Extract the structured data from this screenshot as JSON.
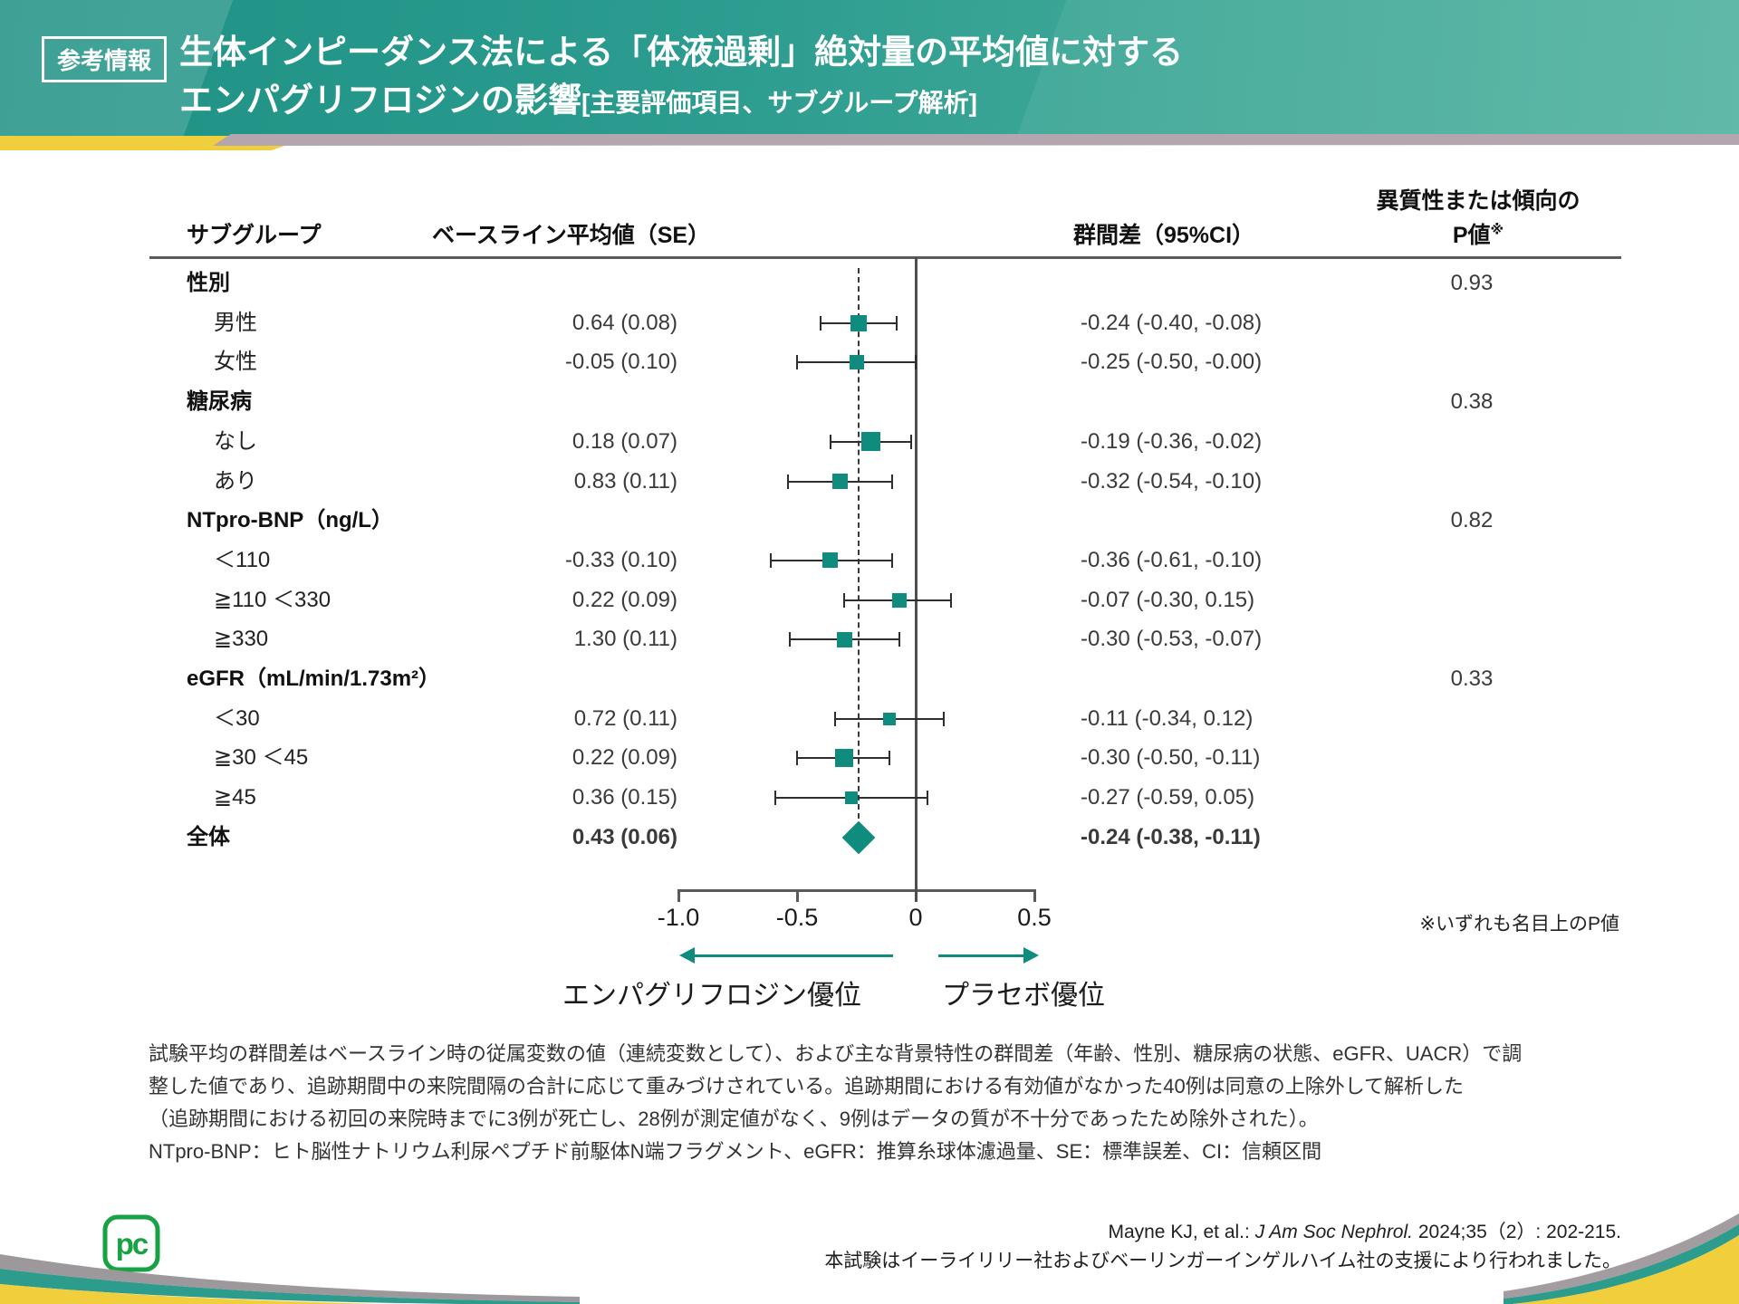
{
  "colors": {
    "header_teal_dark": "#1e9184",
    "header_teal_light": "#55b4a2",
    "marker_teal": "#0f8c7e",
    "stripe_mauve": "#b4a6af",
    "stripe_yellow": "#f1ce3b",
    "logo_green": "#17a244"
  },
  "header": {
    "tag": "参考情報",
    "title_line1": "生体インピーダンス法による「体液過剰」絶対量の平均値に対する",
    "title_line2_main": "エンパグリフロジンの影響",
    "title_line2_sub": "[主要評価項目、サブグループ解析]"
  },
  "table_headers": {
    "subgroup": "サブグループ",
    "baseline": "ベースライン平均値（SE）",
    "diff": "群間差（95%CI）",
    "p_line1": "異質性または傾向の",
    "p_line2": "P値",
    "p_sup": "※"
  },
  "chart_data": {
    "type": "forest",
    "title": "生体インピーダンス法による「体液過剰」絶対量の平均値に対するエンパグリフロジンの影響（主要評価項目、サブグループ解析）",
    "xlabel_left": "エンパグリフロジン優位",
    "xlabel_right": "プラセボ優位",
    "xlim": [
      -1.0,
      0.5
    ],
    "x_ticks": [
      {
        "v": -1.0,
        "label": "-1.0"
      },
      {
        "v": -0.5,
        "label": "-0.5"
      },
      {
        "v": 0,
        "label": "0"
      },
      {
        "v": 0.5,
        "label": "0.5"
      }
    ],
    "zero_reference": 0,
    "overall_dashed_at": -0.24,
    "rows": [
      {
        "type": "group",
        "label": "性別",
        "p": "0.93"
      },
      {
        "type": "item",
        "label": "男性",
        "baseline": "0.64 (0.08)",
        "diff": "-0.24 (-0.40, -0.08)",
        "est": -0.24,
        "lo": -0.4,
        "hi": -0.08,
        "marker_size": 18
      },
      {
        "type": "item",
        "label": "女性",
        "baseline": "-0.05 (0.10)",
        "diff": "-0.25 (-0.50, -0.00)",
        "est": -0.25,
        "lo": -0.5,
        "hi": 0.0,
        "marker_size": 16
      },
      {
        "type": "group",
        "label": "糖尿病",
        "p": "0.38"
      },
      {
        "type": "item",
        "label": "なし",
        "baseline": "0.18 (0.07)",
        "diff": "-0.19 (-0.36, -0.02)",
        "est": -0.19,
        "lo": -0.36,
        "hi": -0.02,
        "marker_size": 21
      },
      {
        "type": "item",
        "label": "あり",
        "baseline": "0.83 (0.11)",
        "diff": "-0.32 (-0.54, -0.10)",
        "est": -0.32,
        "lo": -0.54,
        "hi": -0.1,
        "marker_size": 17
      },
      {
        "type": "group",
        "label": "NTpro-BNP（ng/L）",
        "p": "0.82"
      },
      {
        "type": "item",
        "label": "＜110",
        "baseline": "-0.33 (0.10)",
        "diff": "-0.36 (-0.61, -0.10)",
        "est": -0.36,
        "lo": -0.61,
        "hi": -0.1,
        "marker_size": 17
      },
      {
        "type": "item",
        "label": "≧110 ＜330",
        "baseline": "0.22 (0.09)",
        "diff": "-0.07 (-0.30, 0.15)",
        "est": -0.07,
        "lo": -0.3,
        "hi": 0.15,
        "marker_size": 16
      },
      {
        "type": "item",
        "label": "≧330",
        "baseline": "1.30 (0.11)",
        "diff": "-0.30 (-0.53, -0.07)",
        "est": -0.3,
        "lo": -0.53,
        "hi": -0.07,
        "marker_size": 17
      },
      {
        "type": "group",
        "label": "eGFR（mL/min/1.73m²）",
        "p": "0.33"
      },
      {
        "type": "item",
        "label": "＜30",
        "baseline": "0.72 (0.11)",
        "diff": "-0.11 (-0.34, 0.12)",
        "est": -0.11,
        "lo": -0.34,
        "hi": 0.12,
        "marker_size": 14
      },
      {
        "type": "item",
        "label": "≧30 ＜45",
        "baseline": "0.22 (0.09)",
        "diff": "-0.30 (-0.50, -0.11)",
        "est": -0.3,
        "lo": -0.5,
        "hi": -0.11,
        "marker_size": 20
      },
      {
        "type": "item",
        "label": "≧45",
        "baseline": "0.36 (0.15)",
        "diff": "-0.27 (-0.59, 0.05)",
        "est": -0.27,
        "lo": -0.59,
        "hi": 0.05,
        "marker_size": 14
      },
      {
        "type": "overall",
        "label": "全体",
        "baseline": "0.43 (0.06)",
        "diff": "-0.24 (-0.38, -0.11)",
        "est": -0.24,
        "lo": -0.38,
        "hi": -0.11
      }
    ]
  },
  "notes": {
    "nominal_p": "※いずれも名目上のP値",
    "lines": [
      "試験平均の群間差はベースライン時の従属変数の値（連続変数として）、および主な背景特性の群間差（年齢、性別、糖尿病の状態、eGFR、UACR）で調",
      "整した値であり、追跡期間中の来院間隔の合計に応じて重みづけされている。追跡期間における有効値がなかった40例は同意の上除外して解析した",
      "（追跡期間における初回の来院時までに3例が死亡し、28例が測定値がなく、9例はデータの質が不十分であったため除外された）。",
      "NTpro-BNP：ヒト脳性ナトリウム利尿ペプチド前駆体N端フラグメント、eGFR：推算糸球体濾過量、SE：標準誤差、CI：信頼区間"
    ]
  },
  "footer": {
    "citation_prefix": "Mayne KJ, et al.: ",
    "citation_journal": "J Am Soc Nephrol.",
    "citation_suffix": " 2024;35（2）: 202-215.",
    "support": "本試験はイーライリリー社およびベーリンガーインゲルハイム社の支援により行われました。",
    "logo": "pc"
  }
}
